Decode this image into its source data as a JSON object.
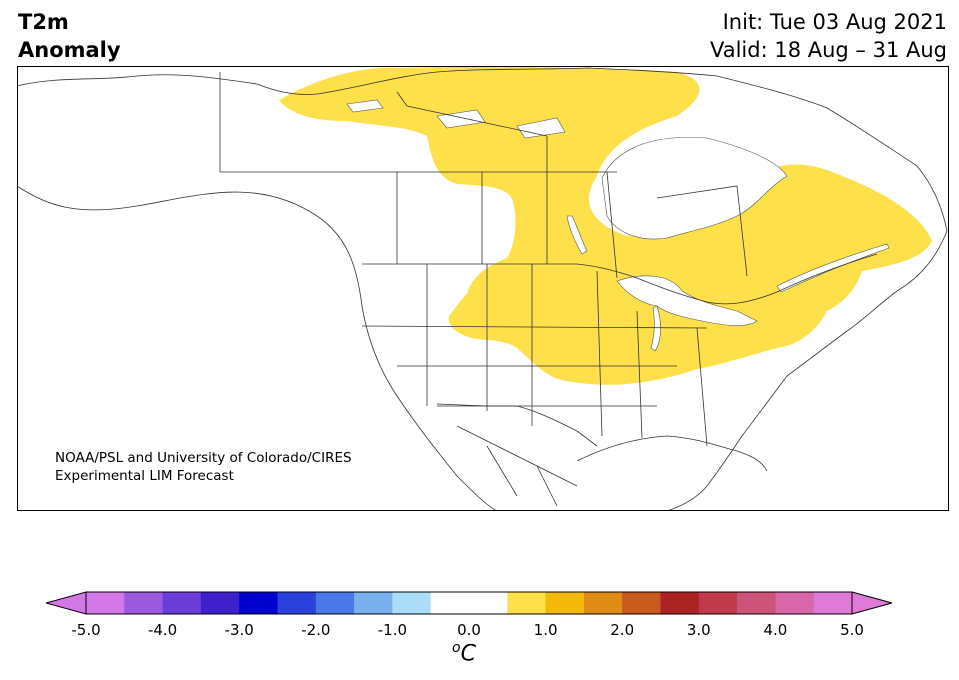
{
  "title": {
    "line1": "T2m",
    "line2": "Anomaly"
  },
  "run": {
    "init": "Init: Tue 03 Aug 2021",
    "valid": "Valid: 18 Aug – 31 Aug"
  },
  "credit": {
    "line1": "NOAA/PSL and University of Colorado/CIRES",
    "line2": "Experimental LIM Forecast"
  },
  "colorbar": {
    "units_symbol": "o",
    "units_letter": "C",
    "tick_labels": [
      "-5.0",
      "-4.0",
      "-3.0",
      "-2.0",
      "-1.0",
      "0.0",
      "1.0",
      "2.0",
      "3.0",
      "4.0",
      "5.0"
    ],
    "tick_values": [
      -5,
      -4,
      -3,
      -2,
      -1,
      0,
      1,
      2,
      3,
      4,
      5
    ],
    "under_color": "#d478e8",
    "over_color": "#e07ad8",
    "bins": [
      {
        "from": -5.0,
        "to": -4.5,
        "color": "#d478e8"
      },
      {
        "from": -4.5,
        "to": -4.0,
        "color": "#9b59e0"
      },
      {
        "from": -4.0,
        "to": -3.5,
        "color": "#6a3cd8"
      },
      {
        "from": -3.5,
        "to": -3.0,
        "color": "#3e1fcc"
      },
      {
        "from": -3.0,
        "to": -2.5,
        "color": "#0000cc"
      },
      {
        "from": -2.5,
        "to": -2.0,
        "color": "#2a3fdc"
      },
      {
        "from": -2.0,
        "to": -1.5,
        "color": "#4a78e6"
      },
      {
        "from": -1.5,
        "to": -1.0,
        "color": "#78b0ee"
      },
      {
        "from": -1.0,
        "to": -0.5,
        "color": "#aadcf8"
      },
      {
        "from": -0.5,
        "to": 0.0,
        "color": "#ffffff"
      },
      {
        "from": 0.0,
        "to": 0.5,
        "color": "#ffffff"
      },
      {
        "from": 0.5,
        "to": 1.0,
        "color": "#fde04a"
      },
      {
        "from": 1.0,
        "to": 1.5,
        "color": "#f2b80a"
      },
      {
        "from": 1.5,
        "to": 2.0,
        "color": "#e08c14"
      },
      {
        "from": 2.0,
        "to": 2.5,
        "color": "#c85a1e"
      },
      {
        "from": 2.5,
        "to": 3.0,
        "color": "#aa2222"
      },
      {
        "from": 3.0,
        "to": 3.5,
        "color": "#c03a4c"
      },
      {
        "from": 3.5,
        "to": 4.0,
        "color": "#cc5478"
      },
      {
        "from": 4.0,
        "to": 4.5,
        "color": "#d866a8"
      },
      {
        "from": 4.5,
        "to": 5.0,
        "color": "#e07ad8"
      }
    ]
  },
  "map": {
    "anomaly_shown": "0.5 to 1.0",
    "anomaly_color": "#fde04a",
    "land_color": "#ffffff",
    "border_color": "#333333"
  }
}
